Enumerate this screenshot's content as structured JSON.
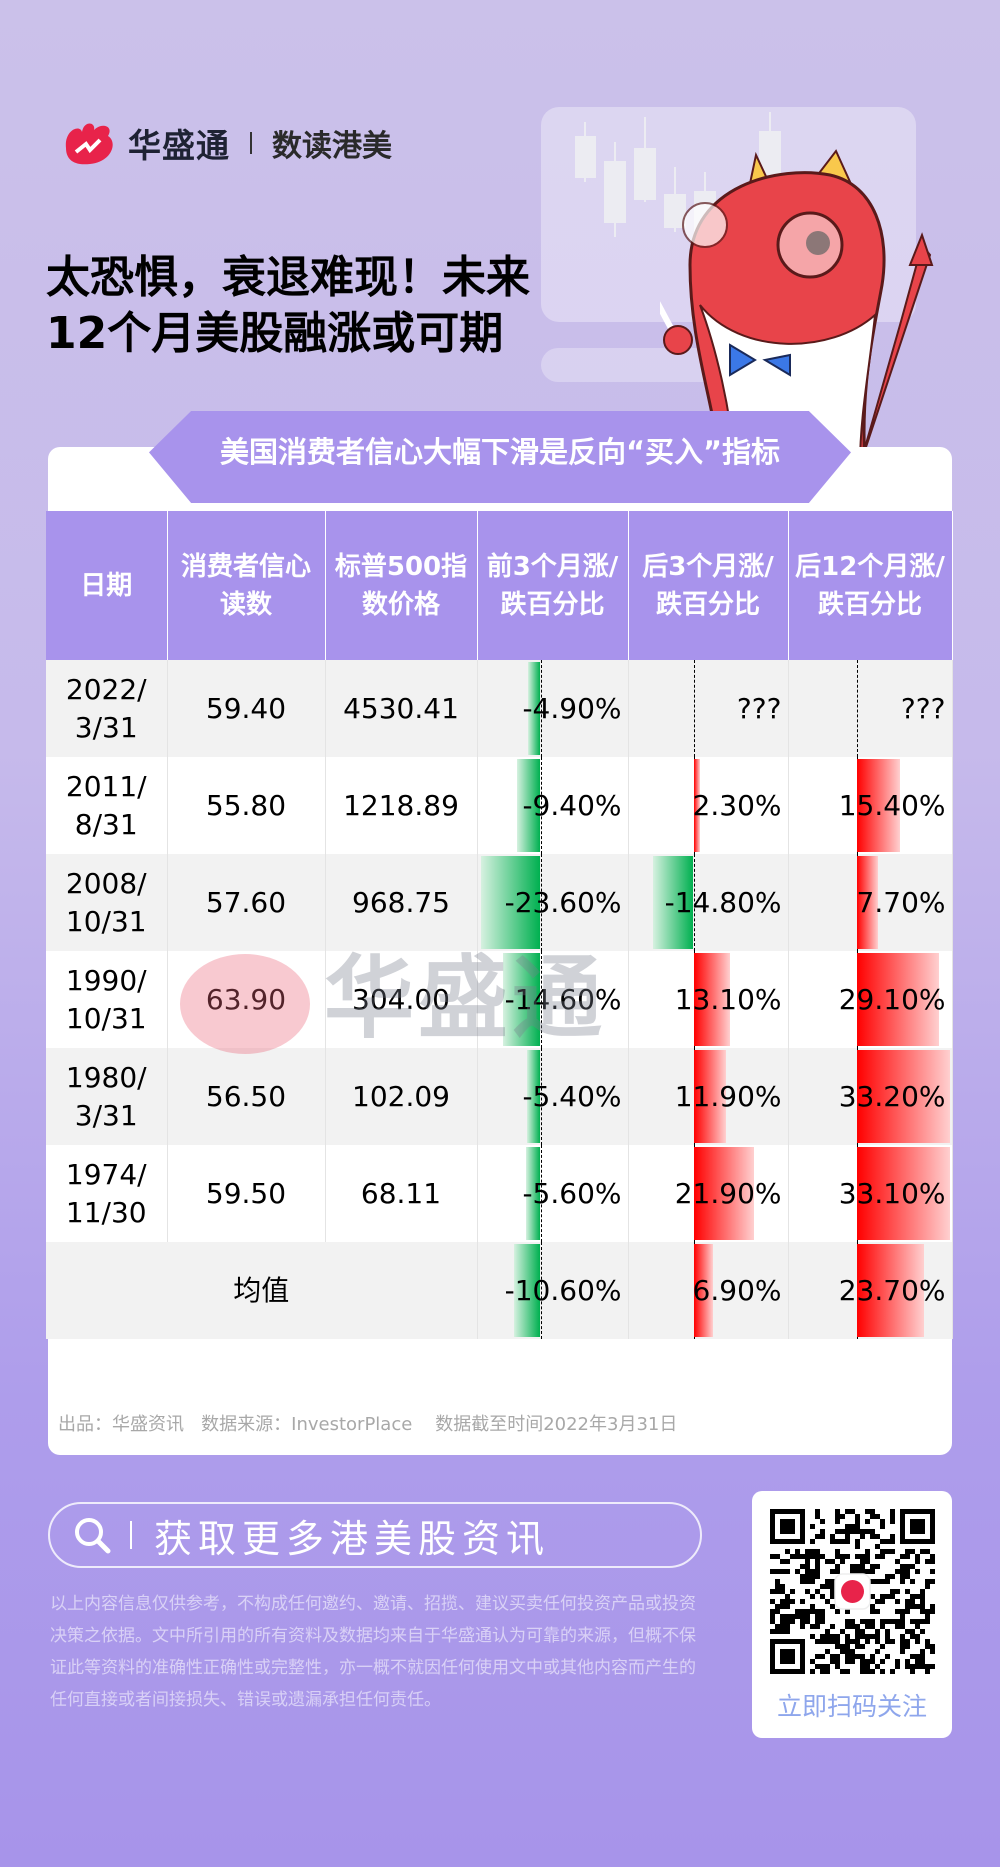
{
  "header": {
    "brand": "华盛通",
    "sub_brand": "数读港美",
    "title_line1": "太恐惧，衰退难现！未来",
    "title_line2": "12个月美股融涨或可期"
  },
  "card": {
    "banner": "美国消费者信心大幅下滑是反向“买入”指标",
    "columns": [
      "日期",
      "消费者信心读数",
      "标普500指数价格",
      "前3个月涨/跌百分比",
      "后3个月涨/跌百分比",
      "后12个月涨/跌百分比"
    ],
    "rows": [
      {
        "date1": "2022/",
        "date2": "3/31",
        "confidence": "59.40",
        "sp500": "4530.41",
        "prev3": "-4.90%",
        "next3": "???",
        "next12": "???",
        "v": [
          -4.9,
          null,
          null
        ]
      },
      {
        "date1": "2011/",
        "date2": "8/31",
        "confidence": "55.80",
        "sp500": "1218.89",
        "prev3": "-9.40%",
        "next3": "2.30%",
        "next12": "15.40%",
        "v": [
          -9.4,
          2.3,
          15.4
        ]
      },
      {
        "date1": "2008/",
        "date2": "10/31",
        "confidence": "57.60",
        "sp500": "968.75",
        "prev3": "-23.60%",
        "next3": "-14.80%",
        "next12": "7.70%",
        "v": [
          -23.6,
          -14.8,
          7.7
        ]
      },
      {
        "date1": "1990/",
        "date2": "10/31",
        "confidence": "63.90",
        "sp500": "304.00",
        "prev3": "-14.60%",
        "next3": "13.10%",
        "next12": "29.10%",
        "v": [
          -14.6,
          13.1,
          29.1
        ]
      },
      {
        "date1": "1980/",
        "date2": "3/31",
        "confidence": "56.50",
        "sp500": "102.09",
        "prev3": "-5.40%",
        "next3": "11.90%",
        "next12": "33.20%",
        "v": [
          -5.4,
          11.9,
          33.2
        ]
      },
      {
        "date1": "1974/",
        "date2": "11/30",
        "confidence": "59.50",
        "sp500": "68.11",
        "prev3": "-5.60%",
        "next3": "21.90%",
        "next12": "33.10%",
        "v": [
          -5.6,
          21.9,
          33.1
        ]
      }
    ],
    "average": {
      "label": "均值",
      "prev3": "-10.60%",
      "next3": "6.90%",
      "next12": "23.70%",
      "v": [
        -10.6,
        6.9,
        23.7
      ]
    },
    "watermark": "华盛通",
    "source": "出品：华盛资讯   数据来源：InvestorPlace    数据截至时间2022年3月31日"
  },
  "colors": {
    "up": "#ff0000",
    "down": "#00b050",
    "accent": "#a893ec"
  },
  "footer": {
    "search_label": "获取更多港美股资讯",
    "disclaimer": "以上内容信息仅供参考，不构成任何邀约、邀请、招揽、建议买卖任何投资产品或投资决策之依据。文中所引用的所有资料及数据均来自于华盛通认为可靠的来源，但概不保证此等资料的准确性正确性或完整性，亦一概不就因任何使用文中或其他内容而产生的任何直接或者间接损失、错误或遗漏承担任何责任。",
    "qr_label": "立即扫码关注"
  }
}
